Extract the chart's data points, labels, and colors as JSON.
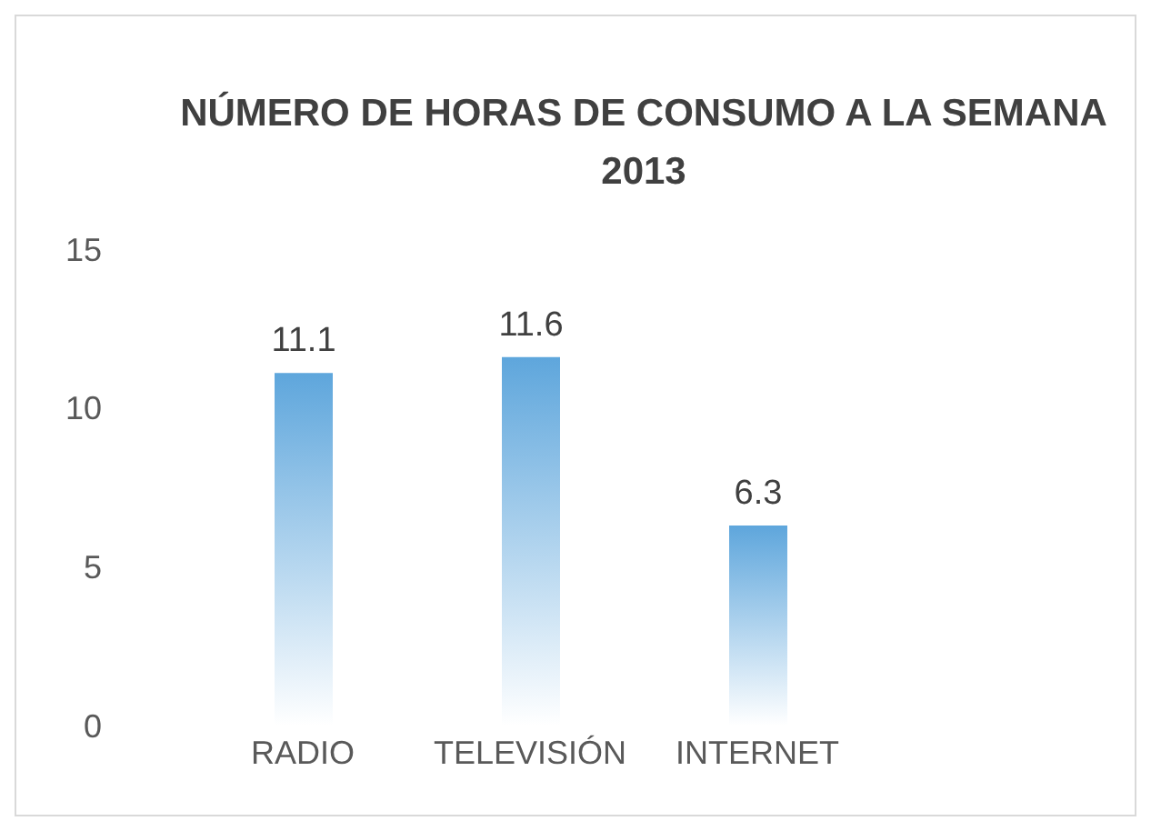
{
  "chart_data": {
    "type": "bar",
    "title": "NÚMERO DE HORAS DE CONSUMO A LA SEMANA 2013",
    "categories": [
      "RADIO",
      "TELEVISIÓN",
      "INTERNET"
    ],
    "values": [
      11.1,
      11.6,
      6.3
    ],
    "color": "#5ea6dc",
    "ylim": [
      0,
      15
    ],
    "yticks": [
      0,
      5,
      10,
      15
    ],
    "grid": false,
    "legend": false,
    "data_labels": true
  }
}
